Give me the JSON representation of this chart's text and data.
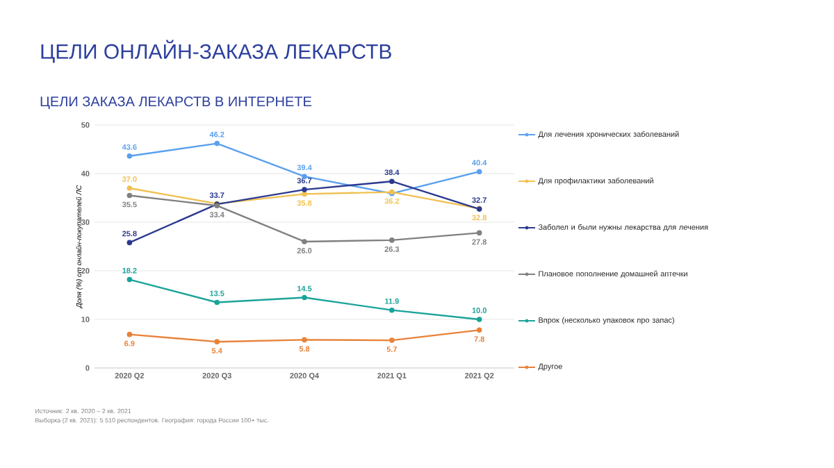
{
  "chart_data": {
    "type": "line",
    "title": "ЦЕЛИ ОНЛАЙН-ЗАКАЗА ЛЕКАРСТВ",
    "subtitle": "ЦЕЛИ ЗАКАЗА ЛЕКАРСТВ В ИНТЕРНЕТЕ",
    "ylabel": "Доля (%) от онлайн-покупателей ЛС",
    "categories": [
      "2020 Q2",
      "2020 Q3",
      "2020 Q4",
      "2021 Q1",
      "2021 Q2"
    ],
    "series": [
      {
        "name": "Для лечения хронических заболеваний",
        "color": "#5aa0f0",
        "values": [
          43.6,
          46.2,
          39.4,
          35.9,
          40.4
        ],
        "value_labels": [
          "43.6",
          "46.2",
          "39.4",
          null,
          "40.4"
        ]
      },
      {
        "name": "Для профилактики заболеваний",
        "color": "#f0c050",
        "values": [
          37.0,
          33.8,
          35.8,
          36.2,
          32.8
        ],
        "value_labels": [
          "37.0",
          null,
          "35.8",
          "36.2",
          "32.8"
        ]
      },
      {
        "name": "Заболел и были нужны лекарства для лечения",
        "color": "#2b3a8f",
        "values": [
          25.8,
          33.7,
          36.7,
          38.4,
          32.7
        ],
        "value_labels": [
          "25.8",
          "33.7",
          "36.7",
          "38.4",
          "32.7"
        ]
      },
      {
        "name": "Плановое пополнение домашней аптечки",
        "color": "#808080",
        "values": [
          35.5,
          33.4,
          26.0,
          26.3,
          27.8
        ],
        "value_labels": [
          "35.5",
          "33.4",
          "26.0",
          "26.3",
          "27.8"
        ]
      },
      {
        "name": "Впрок (несколько упаковок про запас)",
        "color": "#1aa39a",
        "values": [
          18.2,
          13.5,
          14.5,
          11.9,
          10.0
        ],
        "value_labels": [
          "18.2",
          "13.5",
          "14.5",
          "11.9",
          "10.0"
        ]
      },
      {
        "name": "Другое",
        "color": "#e8823a",
        "values": [
          6.9,
          5.4,
          5.8,
          5.7,
          7.8
        ],
        "value_labels": [
          "6.9",
          "5.4",
          "5.8",
          "5.7",
          "7.8"
        ]
      }
    ],
    "ylim": [
      0,
      50
    ],
    "yticks": [
      0,
      10,
      20,
      30,
      40,
      50
    ],
    "grid": "y",
    "legend": "right",
    "marker": "circle",
    "line_style": "solid",
    "annotations": [
      "Источник: 2 кв. 2020 – 2 кв. 2021",
      "Выборка (2 кв. 2021): 5 510 респондентов. География: города России 100+ тыс."
    ]
  }
}
